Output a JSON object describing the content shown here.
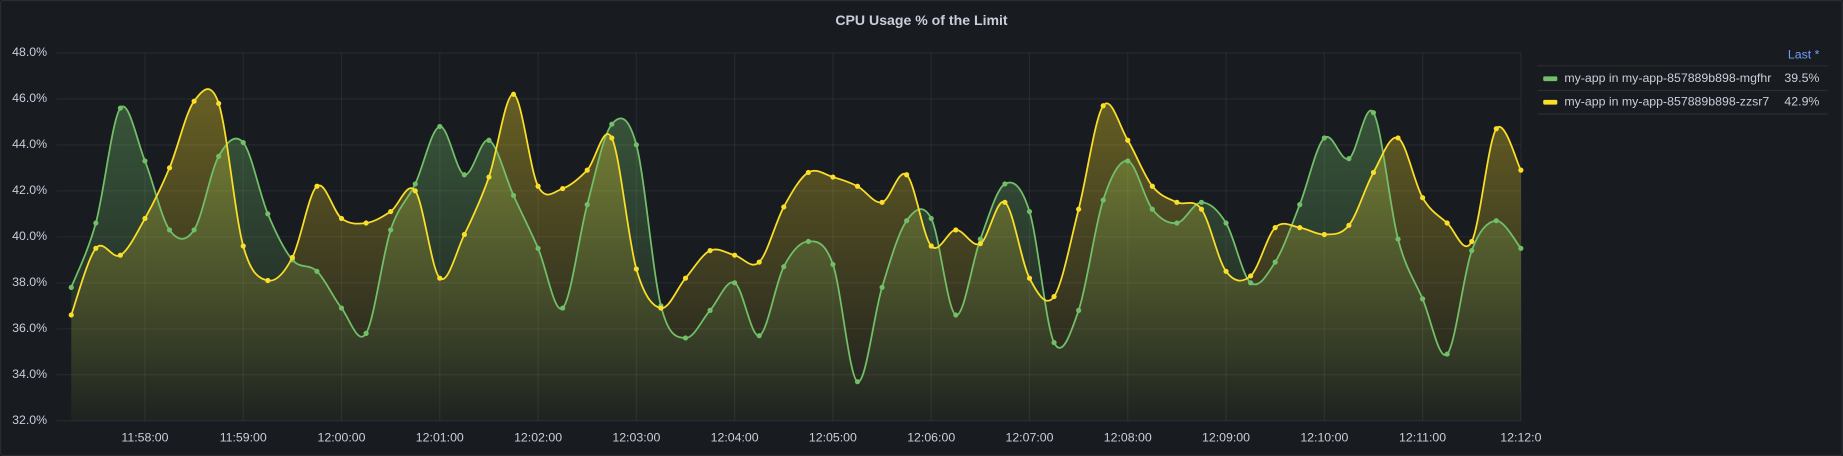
{
  "chart_data": {
    "type": "line",
    "title": "CPU Usage % of the Limit",
    "x": [
      "11:57:15",
      "11:57:30",
      "11:57:45",
      "11:58:00",
      "11:58:15",
      "11:58:30",
      "11:58:45",
      "11:59:00",
      "11:59:15",
      "11:59:30",
      "11:59:45",
      "12:00:00",
      "12:00:15",
      "12:00:30",
      "12:00:45",
      "12:01:00",
      "12:01:15",
      "12:01:30",
      "12:01:45",
      "12:02:00",
      "12:02:15",
      "12:02:30",
      "12:02:45",
      "12:03:00",
      "12:03:15",
      "12:03:30",
      "12:03:45",
      "12:04:00",
      "12:04:15",
      "12:04:30",
      "12:04:45",
      "12:05:00",
      "12:05:15",
      "12:05:30",
      "12:05:45",
      "12:06:00",
      "12:06:15",
      "12:06:30",
      "12:06:45",
      "12:07:00",
      "12:07:15",
      "12:07:30",
      "12:07:45",
      "12:08:00",
      "12:08:15",
      "12:08:30",
      "12:08:45",
      "12:09:00",
      "12:09:15",
      "12:09:30",
      "12:09:45",
      "12:10:00",
      "12:10:15",
      "12:10:30",
      "12:10:45",
      "12:11:00",
      "12:11:15",
      "12:11:30",
      "12:11:45",
      "12:12:00"
    ],
    "series": [
      {
        "name": "my-app in my-app-857889b898-mgfhr",
        "color": "#73bf69",
        "values": [
          37.8,
          40.6,
          45.6,
          43.3,
          40.3,
          40.3,
          43.5,
          44.1,
          41.0,
          39.0,
          38.5,
          36.9,
          35.8,
          40.3,
          42.3,
          44.8,
          42.7,
          44.2,
          41.8,
          39.5,
          36.9,
          41.4,
          44.9,
          44.0,
          37.0,
          35.6,
          36.8,
          38.0,
          35.7,
          38.7,
          39.8,
          38.8,
          33.7,
          37.8,
          40.7,
          40.8,
          36.6,
          39.9,
          42.3,
          41.1,
          35.4,
          36.8,
          41.6,
          43.3,
          41.2,
          40.6,
          41.5,
          40.6,
          38.0,
          38.9,
          41.4,
          44.3,
          43.4,
          45.4,
          39.9,
          37.3,
          34.9,
          39.4,
          40.7,
          39.5
        ],
        "last": {
          "value": 39.5,
          "label": "39.5%"
        }
      },
      {
        "name": "my-app in my-app-857889b898-zzsr7",
        "color": "#fade2a",
        "values": [
          36.6,
          39.5,
          39.2,
          40.8,
          43.0,
          45.9,
          45.8,
          39.6,
          38.1,
          39.1,
          42.2,
          40.8,
          40.6,
          41.1,
          42.0,
          38.2,
          40.1,
          42.6,
          46.2,
          42.2,
          42.1,
          42.9,
          44.3,
          38.6,
          36.9,
          38.2,
          39.4,
          39.2,
          38.9,
          41.3,
          42.8,
          42.6,
          42.2,
          41.5,
          42.7,
          39.6,
          40.3,
          39.7,
          41.5,
          38.2,
          37.4,
          41.2,
          45.7,
          44.2,
          42.2,
          41.5,
          41.2,
          38.5,
          38.3,
          40.4,
          40.4,
          40.1,
          40.5,
          42.8,
          44.3,
          41.7,
          40.6,
          39.8,
          44.7,
          42.9
        ],
        "last": {
          "value": 42.9,
          "label": "42.9%"
        }
      }
    ],
    "xlim": [
      "11:57:06",
      "12:12:00"
    ],
    "xticks": [
      "11:58:00",
      "11:59:00",
      "12:00:00",
      "12:01:00",
      "12:02:00",
      "12:03:00",
      "12:04:00",
      "12:05:00",
      "12:06:00",
      "12:07:00",
      "12:08:00",
      "12:09:00",
      "12:10:00",
      "12:11:00",
      {
        "value": "12:12:00",
        "label": "12:12:0"
      }
    ],
    "ylim": [
      32,
      48
    ],
    "yticks": [
      {
        "value": 32,
        "label": "32.0%"
      },
      {
        "value": 34,
        "label": "34.0%"
      },
      {
        "value": 36,
        "label": "36.0%"
      },
      {
        "value": 38,
        "label": "38.0%"
      },
      {
        "value": 40,
        "label": "40.0%"
      },
      {
        "value": 42,
        "label": "42.0%"
      },
      {
        "value": 44,
        "label": "44.0%"
      },
      {
        "value": 46,
        "label": "46.0%"
      },
      {
        "value": 48,
        "label": "48.0%"
      }
    ],
    "grid": true,
    "legend_header": "Last *",
    "legend_position": "right"
  }
}
